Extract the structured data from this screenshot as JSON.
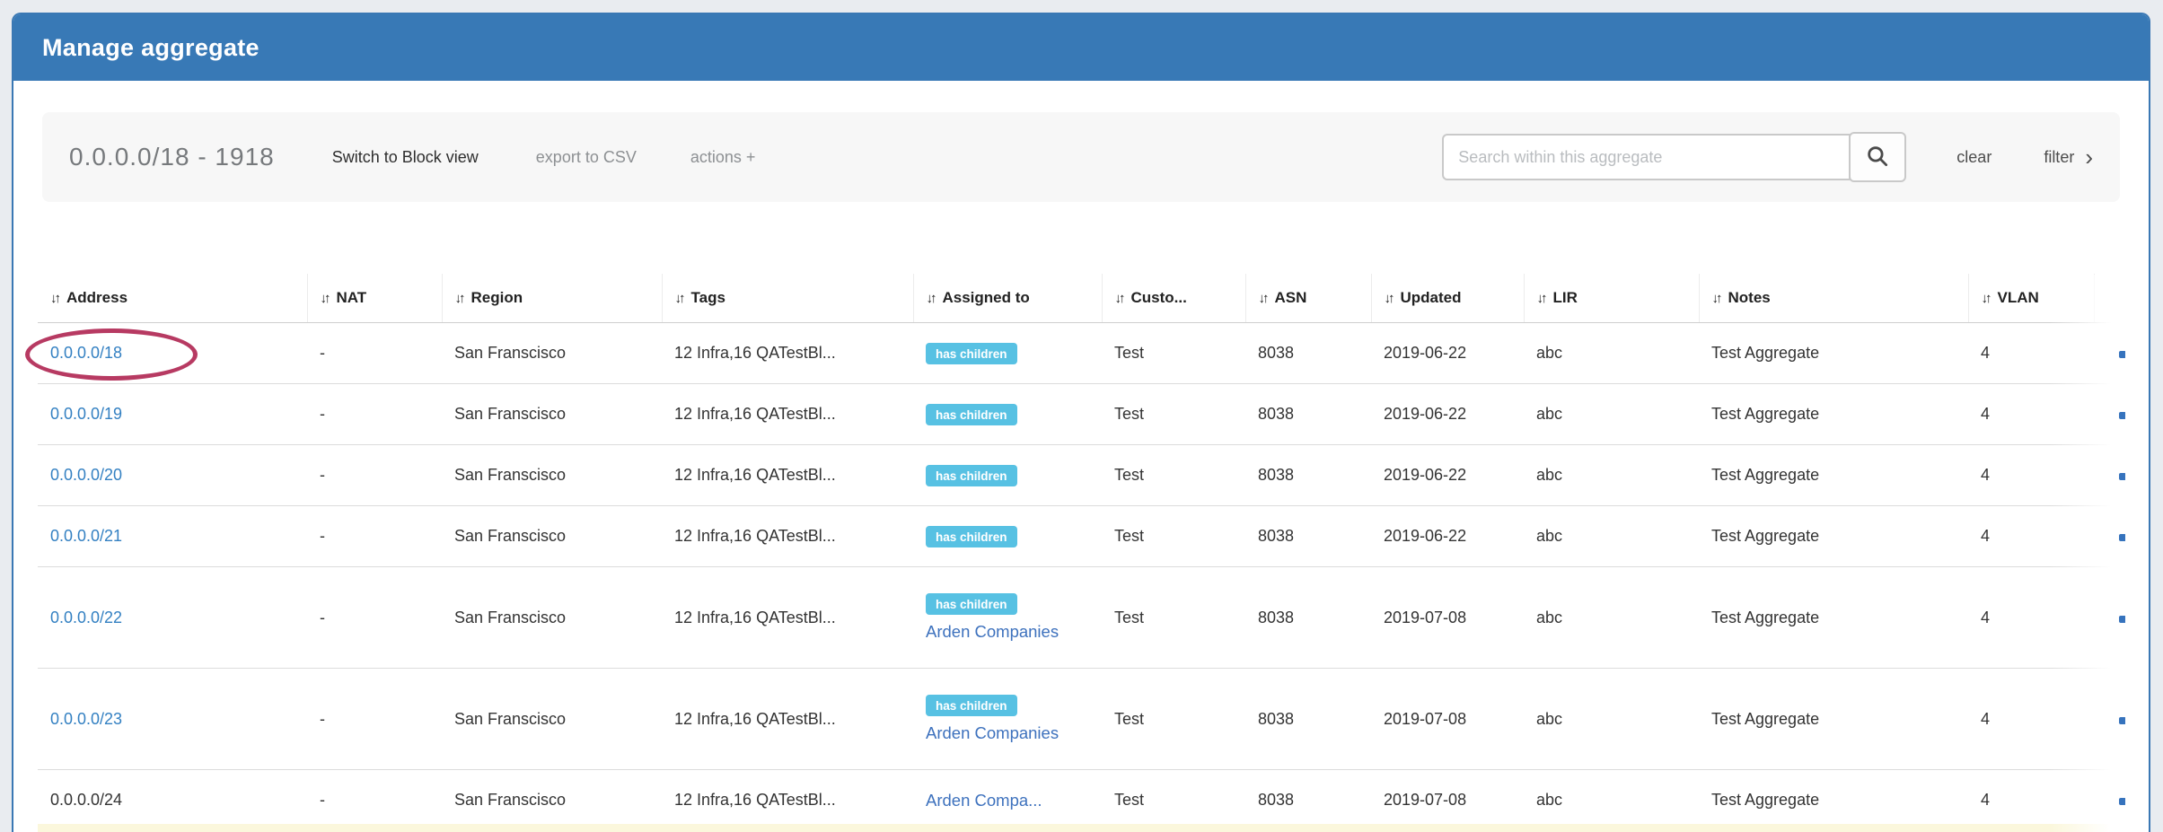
{
  "window": {
    "title": "Manage aggregate"
  },
  "toolbar": {
    "aggregate_label": "0.0.0.0/18 - 1918",
    "switch_view_label": "Switch to Block view",
    "export_label": "export to CSV",
    "actions_label": "actions +",
    "search_placeholder": "Search within this aggregate",
    "clear_label": "clear",
    "filter_label": "filter",
    "filter_chevron": "›"
  },
  "table": {
    "sort_icon": "↓↑",
    "columns": [
      {
        "key": "address",
        "label": "Address"
      },
      {
        "key": "nat",
        "label": "NAT"
      },
      {
        "key": "region",
        "label": "Region"
      },
      {
        "key": "tags",
        "label": "Tags"
      },
      {
        "key": "assigned",
        "label": "Assigned to"
      },
      {
        "key": "customer",
        "label": "Custo..."
      },
      {
        "key": "asn",
        "label": "ASN"
      },
      {
        "key": "updated",
        "label": "Updated"
      },
      {
        "key": "lir",
        "label": "LIR"
      },
      {
        "key": "notes",
        "label": "Notes"
      },
      {
        "key": "vlan",
        "label": "VLAN"
      }
    ],
    "badge_label": "has children",
    "rows": [
      {
        "address": "0.0.0.0/18",
        "address_is_link": true,
        "nat": "-",
        "region": "San Franscisco",
        "tags": "12 Infra,16 QATestBl...",
        "has_children": true,
        "assigned_to": "",
        "customer": "Test",
        "asn": "8038",
        "updated": "2019-06-22",
        "lir": "abc",
        "notes": "Test Aggregate",
        "vlan": "4"
      },
      {
        "address": "0.0.0.0/19",
        "address_is_link": true,
        "nat": "-",
        "region": "San Franscisco",
        "tags": "12 Infra,16 QATestBl...",
        "has_children": true,
        "assigned_to": "",
        "customer": "Test",
        "asn": "8038",
        "updated": "2019-06-22",
        "lir": "abc",
        "notes": "Test Aggregate",
        "vlan": "4"
      },
      {
        "address": "0.0.0.0/20",
        "address_is_link": true,
        "nat": "-",
        "region": "San Franscisco",
        "tags": "12 Infra,16 QATestBl...",
        "has_children": true,
        "assigned_to": "",
        "customer": "Test",
        "asn": "8038",
        "updated": "2019-06-22",
        "lir": "abc",
        "notes": "Test Aggregate",
        "vlan": "4"
      },
      {
        "address": "0.0.0.0/21",
        "address_is_link": true,
        "nat": "-",
        "region": "San Franscisco",
        "tags": "12 Infra,16 QATestBl...",
        "has_children": true,
        "assigned_to": "",
        "customer": "Test",
        "asn": "8038",
        "updated": "2019-06-22",
        "lir": "abc",
        "notes": "Test Aggregate",
        "vlan": "4"
      },
      {
        "address": "0.0.0.0/22",
        "address_is_link": true,
        "nat": "-",
        "region": "San Franscisco",
        "tags": "12 Infra,16 QATestBl...",
        "has_children": true,
        "assigned_to": "Arden Companies",
        "customer": "Test",
        "asn": "8038",
        "updated": "2019-07-08",
        "lir": "abc",
        "notes": "Test Aggregate",
        "vlan": "4"
      },
      {
        "address": "0.0.0.0/23",
        "address_is_link": true,
        "nat": "-",
        "region": "San Franscisco",
        "tags": "12 Infra,16 QATestBl...",
        "has_children": true,
        "assigned_to": "Arden Companies",
        "customer": "Test",
        "asn": "8038",
        "updated": "2019-07-08",
        "lir": "abc",
        "notes": "Test Aggregate",
        "vlan": "4"
      },
      {
        "address": "0.0.0.0/24",
        "address_is_link": false,
        "nat": "-",
        "region": "San Franscisco",
        "tags": "12 Infra,16 QATestBl...",
        "has_children": false,
        "assigned_to": "Arden Compa...",
        "customer": "Test",
        "asn": "8038",
        "updated": "2019-07-08",
        "lir": "abc",
        "notes": "Test Aggregate",
        "vlan": "4"
      }
    ]
  },
  "annotation": {
    "shape": "ellipse",
    "target": "0.0.0.0/18",
    "color": "#b73a62"
  },
  "colors": {
    "header_blue": "#3879b6",
    "panel_border_blue": "#3a78b4",
    "badge_blue": "#57c1e3",
    "address_link_blue": "#3380c2",
    "assigned_link_blue": "#3d71bd",
    "next_row_highlight": "#fbf7dc",
    "page_background": "#e9ecf0"
  }
}
